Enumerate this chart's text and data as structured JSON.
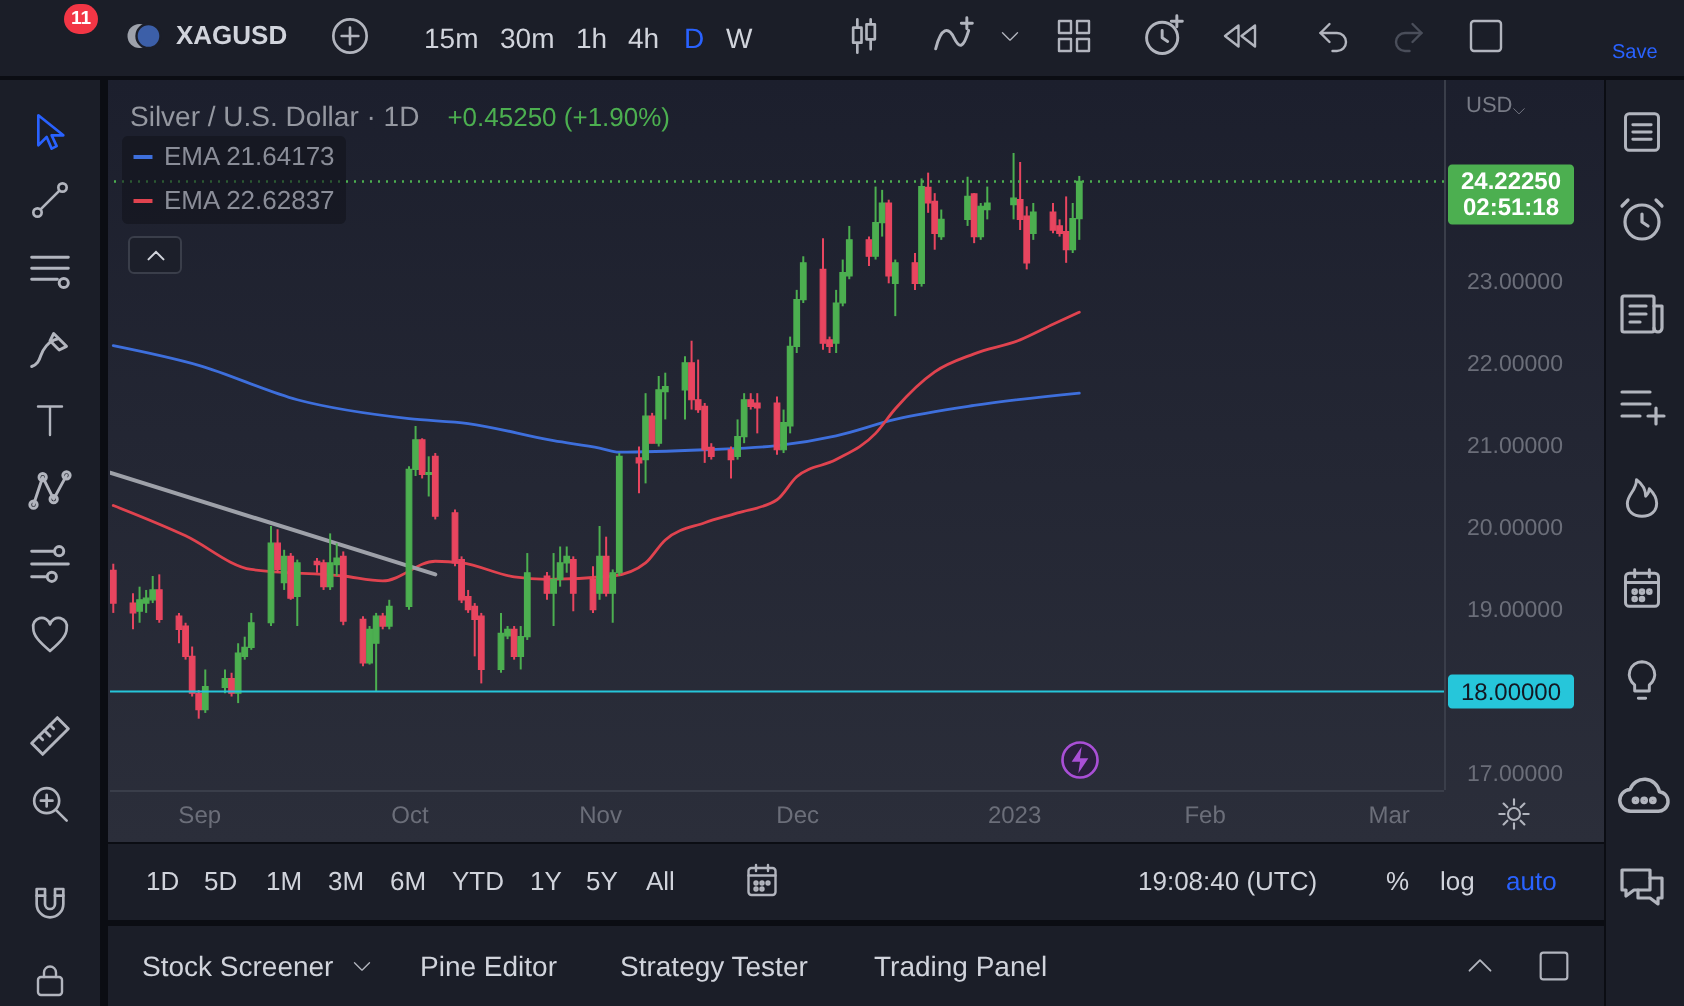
{
  "chart_data": {
    "type": "candlestick",
    "title": "Silver / U.S. Dollar · 1D",
    "subtitle": "+0.45250 (+1.90%)",
    "ylabel": "USD",
    "x": [
      "2022-08-19",
      "2022-08-22",
      "2022-08-23",
      "2022-08-24",
      "2022-08-25",
      "2022-08-26",
      "2022-08-29",
      "2022-08-30",
      "2022-08-31",
      "2022-09-01",
      "2022-09-02",
      "2022-09-05",
      "2022-09-06",
      "2022-09-07",
      "2022-09-08",
      "2022-09-09",
      "2022-09-12",
      "2022-09-13",
      "2022-09-14",
      "2022-09-15",
      "2022-09-16",
      "2022-09-19",
      "2022-09-20",
      "2022-09-21",
      "2022-09-22",
      "2022-09-23",
      "2022-09-26",
      "2022-09-27",
      "2022-09-28",
      "2022-09-29",
      "2022-09-30",
      "2022-10-03",
      "2022-10-04",
      "2022-10-05",
      "2022-10-06",
      "2022-10-07",
      "2022-10-10",
      "2022-10-11",
      "2022-10-12",
      "2022-10-13",
      "2022-10-14",
      "2022-10-17",
      "2022-10-18",
      "2022-10-19",
      "2022-10-20",
      "2022-10-21",
      "2022-10-24",
      "2022-10-25",
      "2022-10-26",
      "2022-10-27",
      "2022-10-28",
      "2022-10-31",
      "2022-11-01",
      "2022-11-02",
      "2022-11-03",
      "2022-11-04",
      "2022-11-07",
      "2022-11-08",
      "2022-11-09",
      "2022-11-10",
      "2022-11-11",
      "2022-11-14",
      "2022-11-15",
      "2022-11-16",
      "2022-11-17",
      "2022-11-18",
      "2022-11-21",
      "2022-11-22",
      "2022-11-23",
      "2022-11-24",
      "2022-11-25",
      "2022-11-28",
      "2022-11-29",
      "2022-11-30",
      "2022-12-01",
      "2022-12-02",
      "2022-12-05",
      "2022-12-06",
      "2022-12-07",
      "2022-12-08",
      "2022-12-09",
      "2022-12-12",
      "2022-12-13",
      "2022-12-14",
      "2022-12-15",
      "2022-12-16",
      "2022-12-19",
      "2022-12-20",
      "2022-12-21",
      "2022-12-22",
      "2022-12-23",
      "2022-12-27",
      "2022-12-28",
      "2022-12-29",
      "2022-12-30",
      "2023-01-03",
      "2023-01-04",
      "2023-01-05",
      "2023-01-06",
      "2023-01-09",
      "2023-01-10",
      "2023-01-11",
      "2023-01-12",
      "2023-01-13"
    ],
    "ohlc": [
      [
        19.48,
        19.56,
        18.96,
        19.08
      ],
      [
        19.08,
        19.2,
        18.76,
        18.96
      ],
      [
        18.98,
        19.28,
        18.84,
        19.12
      ],
      [
        19.08,
        19.24,
        18.96,
        19.14
      ],
      [
        19.12,
        19.41,
        19.08,
        19.24
      ],
      [
        19.24,
        19.43,
        18.84,
        18.88
      ],
      [
        18.92,
        18.96,
        18.59,
        18.76
      ],
      [
        18.8,
        18.84,
        18.39,
        18.43
      ],
      [
        18.43,
        18.55,
        17.94,
        17.98
      ],
      [
        17.98,
        18.02,
        17.67,
        17.78
      ],
      [
        17.78,
        18.27,
        17.74,
        18.06
      ],
      [
        18.05,
        18.27,
        17.98,
        18.16
      ],
      [
        18.16,
        18.23,
        17.94,
        17.98
      ],
      [
        17.98,
        18.59,
        17.86,
        18.47
      ],
      [
        18.43,
        18.67,
        18.39,
        18.54
      ],
      [
        18.54,
        18.96,
        18.51,
        18.84
      ],
      [
        18.84,
        20.02,
        18.8,
        19.81
      ],
      [
        19.81,
        19.98,
        19.45,
        19.49
      ],
      [
        19.33,
        19.73,
        19.24,
        19.65
      ],
      [
        19.65,
        19.69,
        19.12,
        19.14
      ],
      [
        19.16,
        19.61,
        18.8,
        19.57
      ],
      [
        19.59,
        19.63,
        19.45,
        19.55
      ],
      [
        19.57,
        19.61,
        19.24,
        19.28
      ],
      [
        19.28,
        19.93,
        19.24,
        19.57
      ],
      [
        19.55,
        19.81,
        19.41,
        19.63
      ],
      [
        19.65,
        19.71,
        18.81,
        18.86
      ],
      [
        18.88,
        18.92,
        18.31,
        18.35
      ],
      [
        18.35,
        18.8,
        18.33,
        18.76
      ],
      [
        18.59,
        18.96,
        18.0,
        18.92
      ],
      [
        18.92,
        18.96,
        18.76,
        18.8
      ],
      [
        18.8,
        19.12,
        18.76,
        19.04
      ],
      [
        19.04,
        20.75,
        19.0,
        20.71
      ],
      [
        20.71,
        21.24,
        20.63,
        21.07
      ],
      [
        21.07,
        21.09,
        20.6,
        20.65
      ],
      [
        20.65,
        20.87,
        20.38,
        20.67
      ],
      [
        20.87,
        20.91,
        20.1,
        20.14
      ],
      [
        20.18,
        20.22,
        19.53,
        19.57
      ],
      [
        19.61,
        19.65,
        19.08,
        19.12
      ],
      [
        19.16,
        19.24,
        18.96,
        19.0
      ],
      [
        19.04,
        19.08,
        18.43,
        18.88
      ],
      [
        18.92,
        18.96,
        18.1,
        18.27
      ],
      [
        18.27,
        18.96,
        18.23,
        18.71
      ],
      [
        18.68,
        18.8,
        18.64,
        18.76
      ],
      [
        18.76,
        18.8,
        18.39,
        18.43
      ],
      [
        18.43,
        18.8,
        18.27,
        18.67
      ],
      [
        18.67,
        19.69,
        18.63,
        19.45
      ],
      [
        19.41,
        19.46,
        19.12,
        19.2
      ],
      [
        19.2,
        19.69,
        18.8,
        19.37
      ],
      [
        19.37,
        19.77,
        19.28,
        19.57
      ],
      [
        19.57,
        19.77,
        19.45,
        19.65
      ],
      [
        19.61,
        19.65,
        18.98,
        19.2
      ],
      [
        19.37,
        19.53,
        18.96,
        19.0
      ],
      [
        19.2,
        20.02,
        19.12,
        19.65
      ],
      [
        19.65,
        19.89,
        19.16,
        19.2
      ],
      [
        19.2,
        19.49,
        18.84,
        19.45
      ],
      [
        19.45,
        20.91,
        19.41,
        20.87
      ],
      [
        20.85,
        20.99,
        20.42,
        20.79
      ],
      [
        20.83,
        21.64,
        20.54,
        21.36
      ],
      [
        21.36,
        21.4,
        21.03,
        21.03
      ],
      [
        21.03,
        21.85,
        20.99,
        21.68
      ],
      [
        21.66,
        21.89,
        21.32,
        21.72
      ],
      [
        21.68,
        22.09,
        21.32,
        22.01
      ],
      [
        22.01,
        22.28,
        21.44,
        21.56
      ],
      [
        21.56,
        22.05,
        21.4,
        21.44
      ],
      [
        21.48,
        21.52,
        20.79,
        20.95
      ],
      [
        20.98,
        21.03,
        20.83,
        20.87
      ],
      [
        20.95,
        20.99,
        20.6,
        20.83
      ],
      [
        20.87,
        21.32,
        20.83,
        21.11
      ],
      [
        21.11,
        21.64,
        21.03,
        21.56
      ],
      [
        21.56,
        21.64,
        21.44,
        21.48
      ],
      [
        21.52,
        21.64,
        21.15,
        21.46
      ],
      [
        21.52,
        21.6,
        20.89,
        20.95
      ],
      [
        20.95,
        21.44,
        20.91,
        21.28
      ],
      [
        21.24,
        22.33,
        21.15,
        22.21
      ],
      [
        22.21,
        22.9,
        22.13,
        22.78
      ],
      [
        22.78,
        23.31,
        22.74,
        23.23
      ],
      [
        23.15,
        23.53,
        22.17,
        22.25
      ],
      [
        22.29,
        22.33,
        22.13,
        22.21
      ],
      [
        22.25,
        22.9,
        22.13,
        22.74
      ],
      [
        22.74,
        23.27,
        22.7,
        23.11
      ],
      [
        23.07,
        23.68,
        23.03,
        23.51
      ],
      [
        23.51,
        23.55,
        23.19,
        23.31
      ],
      [
        23.31,
        24.16,
        23.27,
        23.72
      ],
      [
        23.72,
        24.12,
        23.55,
        23.96
      ],
      [
        23.96,
        24.0,
        22.98,
        23.07
      ],
      [
        22.98,
        23.27,
        22.58,
        23.23
      ],
      [
        23.23,
        23.35,
        22.9,
        22.98
      ],
      [
        22.98,
        24.26,
        22.94,
        24.16
      ],
      [
        24.15,
        24.33,
        23.84,
        23.96
      ],
      [
        23.98,
        24.08,
        23.39,
        23.59
      ],
      [
        23.55,
        23.88,
        23.51,
        23.76
      ],
      [
        23.76,
        24.28,
        23.68,
        24.04
      ],
      [
        24.07,
        24.08,
        23.47,
        23.55
      ],
      [
        23.55,
        23.96,
        23.51,
        23.92
      ],
      [
        23.88,
        24.16,
        23.76,
        23.96
      ],
      [
        23.94,
        24.57,
        23.76,
        24.02
      ],
      [
        24.0,
        24.46,
        23.63,
        23.76
      ],
      [
        23.8,
        23.92,
        23.15,
        23.23
      ],
      [
        23.59,
        23.96,
        23.51,
        23.85
      ],
      [
        23.85,
        23.96,
        23.59,
        23.63
      ],
      [
        23.68,
        23.76,
        23.55,
        23.59
      ],
      [
        23.61,
        24.04,
        23.23,
        23.39
      ],
      [
        23.39,
        23.96,
        23.35,
        23.77
      ],
      [
        23.77,
        24.29,
        23.51,
        24.2225
      ]
    ],
    "colors": [
      "#e8455f",
      "#e8455f",
      "#4caf50",
      "#4caf50",
      "#4caf50",
      "#e8455f",
      "#e8455f",
      "#e8455f",
      "#e8455f",
      "#e8455f",
      "#4caf50",
      "#4caf50",
      "#e8455f",
      "#4caf50",
      "#4caf50",
      "#4caf50",
      "#4caf50",
      "#e8455f",
      "#4caf50",
      "#e8455f",
      "#4caf50",
      "#e8455f",
      "#e8455f",
      "#4caf50",
      "#4caf50",
      "#e8455f",
      "#e8455f",
      "#4caf50",
      "#4caf50",
      "#e8455f",
      "#4caf50",
      "#4caf50",
      "#4caf50",
      "#e8455f",
      "#4caf50",
      "#e8455f",
      "#e8455f",
      "#e8455f",
      "#e8455f",
      "#e8455f",
      "#e8455f",
      "#4caf50",
      "#4caf50",
      "#e8455f",
      "#4caf50",
      "#4caf50",
      "#e8455f",
      "#4caf50",
      "#4caf50",
      "#4caf50",
      "#e8455f",
      "#e8455f",
      "#4caf50",
      "#e8455f",
      "#4caf50",
      "#4caf50",
      "#e8455f",
      "#4caf50",
      "#e8455f",
      "#4caf50",
      "#4caf50",
      "#4caf50",
      "#e8455f",
      "#e8455f",
      "#e8455f",
      "#e8455f",
      "#e8455f",
      "#4caf50",
      "#4caf50",
      "#e8455f",
      "#e8455f",
      "#e8455f",
      "#4caf50",
      "#4caf50",
      "#4caf50",
      "#4caf50",
      "#e8455f",
      "#e8455f",
      "#4caf50",
      "#4caf50",
      "#4caf50",
      "#e8455f",
      "#4caf50",
      "#4caf50",
      "#e8455f",
      "#4caf50",
      "#e8455f",
      "#4caf50",
      "#e8455f",
      "#e8455f",
      "#4caf50",
      "#4caf50",
      "#e8455f",
      "#4caf50",
      "#4caf50",
      "#4caf50",
      "#e8455f",
      "#e8455f",
      "#4caf50",
      "#e8455f",
      "#e8455f",
      "#e8455f",
      "#4caf50",
      "#4caf50"
    ],
    "series": [
      {
        "name": "EMA 21.64173",
        "type": "line",
        "color": "#3e6fdc",
        "x": [
          "2022-08-19",
          "2022-09-01",
          "2022-09-16",
          "2022-10-03",
          "2022-10-12",
          "2022-10-25",
          "2022-11-01",
          "2022-11-04",
          "2022-11-17",
          "2022-11-28",
          "2022-12-07",
          "2022-12-16",
          "2022-12-28",
          "2023-01-13"
        ],
        "values": [
          22.22,
          21.98,
          21.56,
          21.33,
          21.27,
          21.06,
          20.97,
          20.92,
          20.95,
          21.0,
          21.12,
          21.32,
          21.49,
          21.64173
        ]
      },
      {
        "name": "EMA 22.62837",
        "type": "line",
        "color": "#e0434f",
        "x": [
          "2022-08-19",
          "2022-08-30",
          "2022-09-09",
          "2022-09-23",
          "2022-09-29",
          "2022-10-07",
          "2022-10-11",
          "2022-10-19",
          "2022-10-24",
          "2022-11-03",
          "2022-11-08",
          "2022-11-11",
          "2022-11-17",
          "2022-11-22",
          "2022-11-28",
          "2022-12-01",
          "2022-12-07",
          "2022-12-13",
          "2022-12-16",
          "2022-12-22",
          "2022-12-28",
          "2023-01-04",
          "2023-01-09",
          "2023-01-13"
        ],
        "values": [
          20.27,
          19.9,
          19.49,
          19.41,
          19.35,
          19.59,
          19.57,
          19.4,
          19.37,
          19.41,
          19.57,
          19.85,
          20.06,
          20.18,
          20.34,
          20.62,
          20.83,
          21.15,
          21.45,
          21.9,
          22.12,
          22.29,
          22.48,
          22.62837
        ]
      },
      {
        "type": "line",
        "color": "#9ea1a9",
        "x": [
          "2022-08-18T12:00",
          "2022-10-07"
        ],
        "values": [
          20.67,
          19.43
        ]
      }
    ],
    "xlim": [
      "2022-08-18T12:00",
      "2023-03-09T12:00"
    ],
    "xticks": [
      {
        "value": "2022-09-01",
        "label": "Sep"
      },
      {
        "value": "2022-10-03",
        "label": "Oct"
      },
      {
        "value": "2022-11-01",
        "label": "Nov"
      },
      {
        "value": "2022-12-01",
        "label": "Dec"
      },
      {
        "value": "2023-01-03",
        "label": "2023"
      },
      {
        "value": "2023-02-01",
        "label": "Feb"
      },
      {
        "value": "2023-03-01",
        "label": "Mar"
      }
    ],
    "ylim": [
      16.8,
      25.46
    ],
    "yticks": [
      {
        "value": 17,
        "label": "17.00000"
      },
      {
        "value": 19,
        "label": "19.00000"
      },
      {
        "value": 20,
        "label": "20.00000"
      },
      {
        "value": 21,
        "label": "21.00000"
      },
      {
        "value": 22,
        "label": "22.00000"
      },
      {
        "value": 23,
        "label": "23.00000"
      }
    ],
    "ref_lines": [
      {
        "axis": "y",
        "value": 18,
        "label": "18.00000",
        "color": "#26c6da"
      },
      {
        "axis": "y",
        "value": 24.2225,
        "label": "24.22250",
        "color": "#4caf50",
        "line_style": "dotted"
      }
    ],
    "legend": "top left",
    "annotations": [
      "02:51:18",
      "11",
      "XAGUSD",
      "15m",
      "30m",
      "1h",
      "4h",
      "D",
      "W",
      "Save",
      "1D",
      "5D",
      "1M",
      "3M",
      "6M",
      "YTD",
      "1Y",
      "5Y",
      "All",
      "19:08:40 (UTC)",
      "%",
      "log",
      "auto",
      "Stock Screener",
      "Pine Editor",
      "Strategy Tester",
      "Trading Panel"
    ]
  }
}
